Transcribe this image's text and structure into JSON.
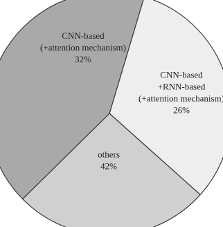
{
  "chart_data": {
    "type": "pie",
    "title": "",
    "slices": [
      {
        "label_lines": [
          "CNN-based",
          "(+attention mechanism)"
        ],
        "value": 32,
        "value_label": "32%",
        "color": "#eeeeee"
      },
      {
        "label_lines": [
          "CNN-based",
          "+RNN-based",
          "(+attention mechanism)"
        ],
        "value": 26,
        "value_label": "26%",
        "color": "#d0d0d0"
      },
      {
        "label_lines": [
          "others"
        ],
        "value": 42,
        "value_label": "42%",
        "color": "#a9a9a9"
      }
    ],
    "legend": "none"
  }
}
